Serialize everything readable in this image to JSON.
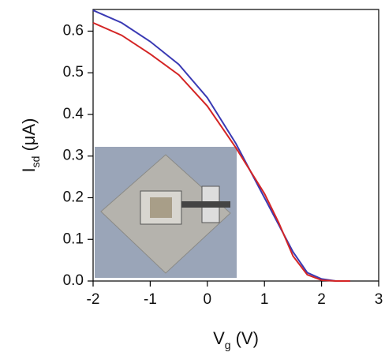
{
  "chart_data": {
    "type": "line",
    "xlabel": {
      "main": "V",
      "sub": "g",
      "rest": "(V)"
    },
    "ylabel": {
      "main": "I",
      "sub": "sd",
      "rest": "(μA)"
    },
    "x": [
      -2,
      -1.5,
      -1,
      -0.5,
      0,
      0.5,
      1,
      1.25,
      1.5,
      1.75,
      2,
      2.25,
      2.5
    ],
    "series": [
      {
        "color": "#3a3ab4",
        "values": [
          0.65,
          0.62,
          0.575,
          0.52,
          0.44,
          0.33,
          0.2,
          0.135,
          0.07,
          0.02,
          0.005,
          0,
          0
        ]
      },
      {
        "color": "#d42525",
        "values": [
          0.62,
          0.59,
          0.545,
          0.495,
          0.42,
          0.32,
          0.21,
          0.14,
          0.06,
          0.015,
          0.002,
          0,
          0
        ]
      }
    ],
    "xlim": [
      -2,
      3
    ],
    "xticks": [
      -2,
      -1,
      0,
      1,
      2,
      3
    ],
    "ylim": [
      0,
      0.652
    ],
    "yticks": [
      {
        "value": 0,
        "label": "0.0"
      },
      0.1,
      0.2,
      0.3,
      0.4,
      0.5,
      0.6
    ]
  }
}
